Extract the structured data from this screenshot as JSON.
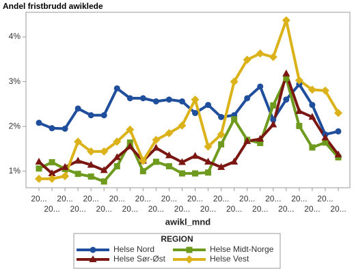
{
  "chart_data": {
    "type": "line",
    "title": "Andel fristbrudd awiklede",
    "x_label": "awikl_mnd",
    "categories": [
      "20...",
      "20...",
      "20...",
      "20...",
      "20...",
      "20...",
      "20...",
      "20...",
      "20...",
      "20...",
      "20...",
      "20...",
      "20...",
      "20...",
      "20...",
      "20...",
      "20...",
      "20...",
      "20...",
      "20...",
      "20...",
      "20...",
      "20...",
      "20..."
    ],
    "ylim": [
      0.63,
      4.55
    ],
    "yticks": [
      {
        "value": 1,
        "label": "1%"
      },
      {
        "value": 2,
        "label": "2%"
      },
      {
        "value": 3,
        "label": "3%"
      },
      {
        "value": 4,
        "label": "4%"
      }
    ],
    "grid": false,
    "legend_title": "REGION",
    "series": [
      {
        "name": "Helse Nord",
        "color": "#1f4e9c",
        "marker": "circle",
        "values": [
          2.08,
          1.96,
          1.95,
          2.4,
          2.25,
          2.25,
          2.85,
          2.63,
          2.63,
          2.56,
          2.6,
          2.56,
          2.3,
          2.48,
          2.21,
          2.25,
          2.63,
          2.89,
          2.15,
          2.6,
          2.94,
          2.48,
          1.82,
          1.89
        ]
      },
      {
        "name": "Helse Midt-Norge",
        "color": "#6e9a1e",
        "marker": "square",
        "values": [
          1.06,
          1.2,
          1.05,
          0.94,
          0.88,
          0.77,
          1.11,
          1.64,
          1.0,
          1.21,
          1.11,
          0.95,
          0.95,
          0.97,
          1.6,
          2.16,
          1.7,
          1.63,
          2.47,
          3.08,
          2.01,
          1.53,
          1.64,
          1.31
        ]
      },
      {
        "name": "Helse Sør-Øst",
        "color": "#7a1712",
        "marker": "triangle",
        "values": [
          1.21,
          0.95,
          1.09,
          1.23,
          1.14,
          1.02,
          1.31,
          1.55,
          1.23,
          1.52,
          1.35,
          1.2,
          1.34,
          1.21,
          1.09,
          1.21,
          1.67,
          1.72,
          2.04,
          3.18,
          2.34,
          2.21,
          1.75,
          1.37
        ]
      },
      {
        "name": "Helse Vest",
        "color": "#dbb219",
        "marker": "diamond",
        "values": [
          0.83,
          0.83,
          0.89,
          1.66,
          1.44,
          1.44,
          1.66,
          1.93,
          1.23,
          1.7,
          1.85,
          2.02,
          2.6,
          1.55,
          1.82,
          3.0,
          3.49,
          3.63,
          3.55,
          4.37,
          3.03,
          2.82,
          2.8,
          2.3
        ]
      }
    ]
  }
}
